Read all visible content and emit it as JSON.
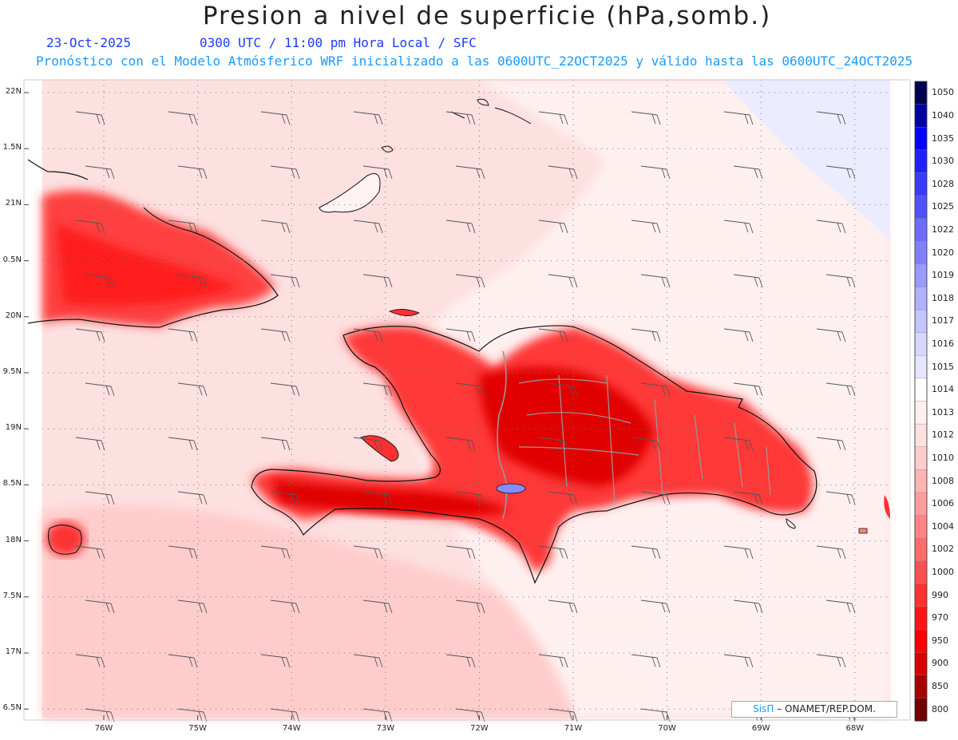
{
  "title": "Presion a nivel de superficie (hPa,somb.)",
  "date": "23-Oct-2025",
  "valid_time": "0300 UTC / 11:00 pm Hora Local / SFC",
  "description": "Pronóstico con el Modelo Atmósferico WRF inicializado a las 0600UTC_22OCT2025 y válido hasta las  0600UTC_24OCT2025",
  "credit": {
    "brand": "SisΠ",
    "text": "– ONAMET/REP.DOM."
  },
  "lat_labels": [
    "22N",
    "1.5N",
    "21N",
    "0.5N",
    "20N",
    "9.5N",
    "19N",
    "8.5N",
    "18N",
    "7.5N",
    "17N",
    "6.5N"
  ],
  "lon_labels": [
    "76W",
    "75W",
    "74W",
    "73W",
    "72W",
    "71W",
    "70W",
    "69W",
    "68W"
  ],
  "colorbar": {
    "levels": [
      "1050",
      "1040",
      "1035",
      "1030",
      "1028",
      "1025",
      "1022",
      "1020",
      "1019",
      "1018",
      "1017",
      "1016",
      "1015",
      "1014",
      "1013",
      "1012",
      "1010",
      "1008",
      "1006",
      "1004",
      "1002",
      "1000",
      "990",
      "970",
      "950",
      "900",
      "850",
      "800"
    ],
    "colors": [
      "#000050",
      "#0000a0",
      "#0000ff",
      "#2020ff",
      "#3a3aff",
      "#5050ff",
      "#6c6cff",
      "#8080ff",
      "#9a9aff",
      "#b0b0ff",
      "#c4c4ff",
      "#d6d6ff",
      "#e6e6ff",
      "#ffffff",
      "#fff0f0",
      "#ffe0e0",
      "#ffcccc",
      "#ffb4b4",
      "#ff9c9c",
      "#ff8484",
      "#ff6c6c",
      "#ff5050",
      "#ff3232",
      "#ff1414",
      "#ff0000",
      "#d80000",
      "#a80000",
      "#700000"
    ]
  }
}
